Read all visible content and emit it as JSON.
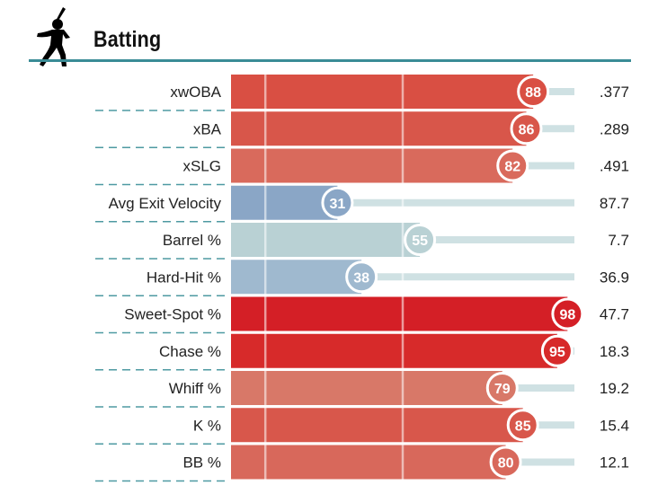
{
  "header": {
    "title": "Batting",
    "icon": "batter-silhouette-icon"
  },
  "colors": {
    "accent_rule": "#3a8c96",
    "track": "#cfe1e3",
    "divider_dash": "#4e9aa2"
  },
  "chart_data": {
    "type": "bar",
    "orientation": "horizontal",
    "title": "Batting",
    "x_range": [
      0,
      100
    ],
    "reference_lines": [
      10,
      50
    ],
    "categories": [
      "xwOBA",
      "xBA",
      "xSLG",
      "Avg Exit Velocity",
      "Barrel %",
      "Hard-Hit %",
      "Sweet-Spot %",
      "Chase %",
      "Whiff %",
      "K %",
      "BB %"
    ],
    "series": [
      {
        "values": [
          88,
          86,
          82,
          31,
          55,
          38,
          98,
          95,
          79,
          85,
          80
        ]
      }
    ],
    "stat_values": [
      ".377",
      ".289",
      ".491",
      "87.7",
      "7.7",
      "36.9",
      "47.7",
      "18.3",
      "19.2",
      "15.4",
      "12.1"
    ],
    "bar_colors": [
      "#d94f43",
      "#d8564a",
      "#d96a5c",
      "#8aa6c6",
      "#b9d1d4",
      "#9fb9cf",
      "#d41f26",
      "#d72a2a",
      "#d87868",
      "#d8574b",
      "#d8685b"
    ]
  }
}
